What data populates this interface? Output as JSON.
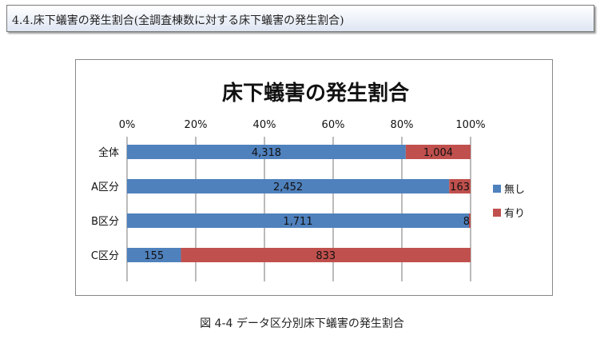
{
  "header": {
    "title": "4.4.床下蟻害の発生割合(全調査棟数に対する床下蟻害の発生割合)"
  },
  "caption": "図 4-4 データ区分別床下蟻害の発生割合",
  "colors": {
    "none": "#4f81bd",
    "present": "#c0504d"
  },
  "chart_data": {
    "type": "bar",
    "orientation": "horizontal",
    "stacked": "percent",
    "title": "床下蟻害の発生割合",
    "categories": [
      "全体",
      "A区分",
      "B区分",
      "C区分"
    ],
    "series": [
      {
        "name": "無し",
        "values": [
          4318,
          2452,
          1711,
          155
        ],
        "labels": [
          "4,318",
          "2,452",
          "1,711",
          "155"
        ]
      },
      {
        "name": "有り",
        "values": [
          1004,
          163,
          8,
          833
        ],
        "labels": [
          "1,004",
          "163",
          "8",
          "833"
        ]
      }
    ],
    "xticks": [
      "0%",
      "20%",
      "40%",
      "60%",
      "80%",
      "100%"
    ],
    "xlim": [
      0,
      100
    ],
    "grid": true,
    "legend": "right"
  }
}
